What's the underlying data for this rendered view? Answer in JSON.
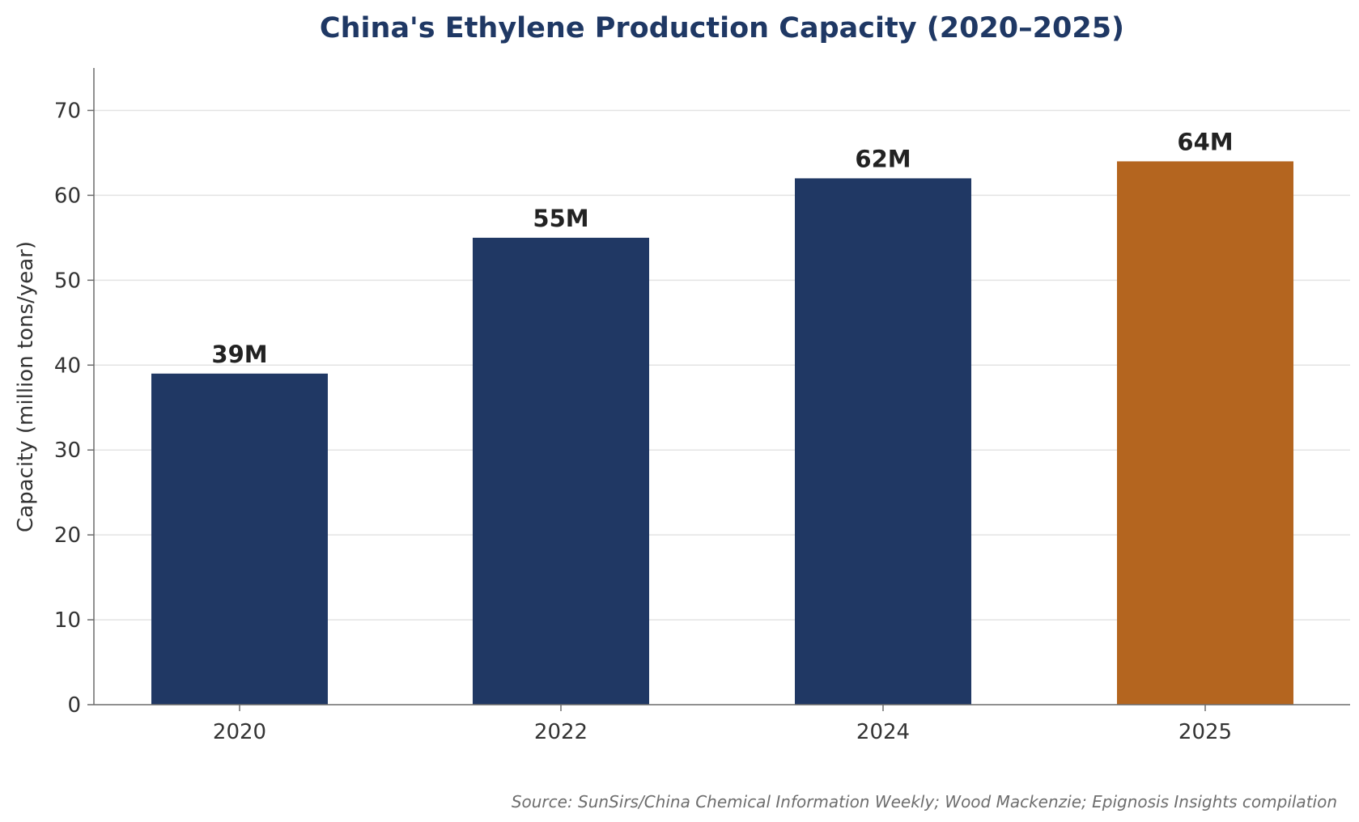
{
  "chart_data": {
    "type": "bar",
    "title": "China's Ethylene Production Capacity (2020–2025)",
    "xlabel": "",
    "ylabel": "Capacity (million tons/year)",
    "categories": [
      "2020",
      "2022",
      "2024",
      "2025"
    ],
    "values": [
      39,
      55,
      62,
      64
    ],
    "data_labels": [
      "39M",
      "55M",
      "62M",
      "64M"
    ],
    "bar_colors": [
      "#203864",
      "#203864",
      "#203864",
      "#b4651f"
    ],
    "ylim": [
      0,
      75
    ],
    "yticks": [
      0,
      10,
      20,
      30,
      40,
      50,
      60,
      70
    ],
    "grid": "horizontal",
    "source": "Source: SunSirs/China Chemical Information Weekly; Wood Mackenzie; Epignosis Insights compilation"
  }
}
